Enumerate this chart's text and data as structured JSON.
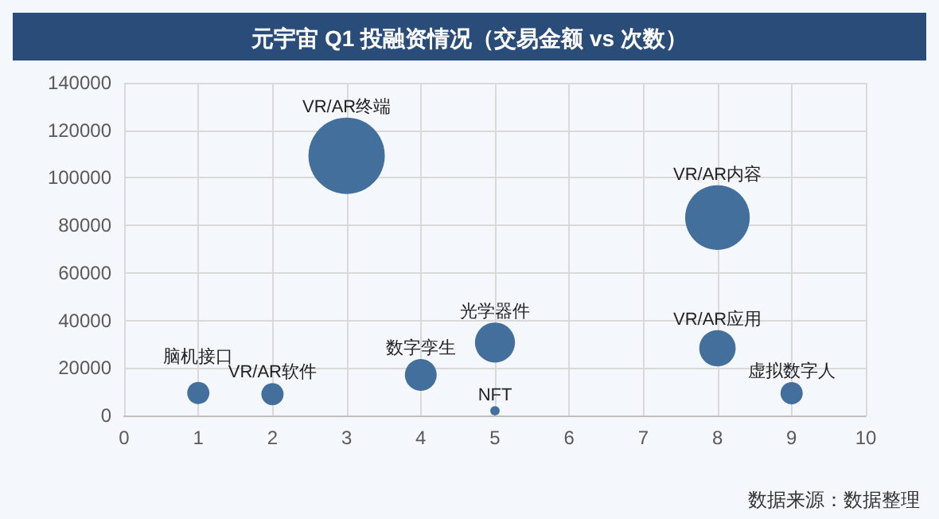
{
  "chart_data": {
    "type": "bubble",
    "title": "元宇宙 Q1 投融资情况（交易金额 vs 次数）",
    "series": [
      {
        "name": "脑机接口",
        "color": "#436f9c",
        "x": [
          1
        ],
        "values": [
          9500
        ],
        "sizes": [
          0.085
        ]
      },
      {
        "name": "VR/AR软件",
        "color": "#436f9c",
        "x": [
          2
        ],
        "values": [
          9000
        ],
        "sizes": [
          0.085
        ]
      },
      {
        "name": "VR/AR终端",
        "color": "#436f9c",
        "x": [
          3
        ],
        "values": [
          109300
        ],
        "sizes": [
          1
        ]
      },
      {
        "name": "数字孪生",
        "color": "#436f9c",
        "x": [
          4
        ],
        "values": [
          17100
        ],
        "sizes": [
          0.173
        ]
      },
      {
        "name": "光学器件",
        "color": "#436f9c",
        "x": [
          5
        ],
        "values": [
          30700
        ],
        "sizes": [
          0.274
        ]
      },
      {
        "name": "NFT",
        "color": "#436f9c",
        "x": [
          5
        ],
        "values": [
          2000
        ],
        "sizes": [
          0.015
        ]
      },
      {
        "name": "VR/AR内容",
        "color": "#436f9c",
        "x": [
          8
        ],
        "values": [
          83300
        ],
        "sizes": [
          0.716
        ]
      },
      {
        "name": "VR/AR应用",
        "color": "#436f9c",
        "x": [
          8
        ],
        "values": [
          28300
        ],
        "sizes": [
          0.227
        ]
      },
      {
        "name": "虚拟数字人",
        "color": "#436f9c",
        "x": [
          9
        ],
        "values": [
          9400
        ],
        "sizes": [
          0.085
        ]
      }
    ],
    "xlim": [
      0,
      10
    ],
    "xticks": [
      0,
      1,
      2,
      3,
      4,
      5,
      6,
      7,
      8,
      9,
      10
    ],
    "ylim": [
      0,
      140000
    ],
    "yticks": [
      0,
      20000,
      40000,
      60000,
      80000,
      100000,
      120000,
      140000
    ],
    "grid": true,
    "legend": false,
    "annotations": [
      "数据来源：数据整理"
    ]
  }
}
